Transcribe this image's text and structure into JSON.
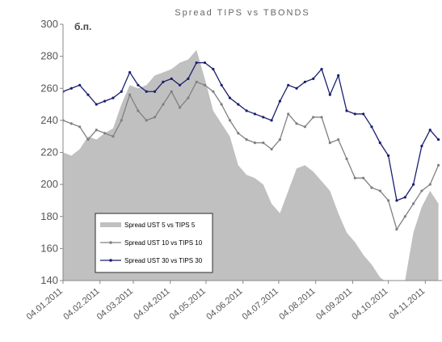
{
  "chart_data": {
    "type": "line",
    "title": "Spread TIPS vs TBONDS",
    "y_label": "б.п.",
    "x": [
      "04.01.2011",
      "11.01.2011",
      "18.01.2011",
      "25.01.2011",
      "01.02.2011",
      "08.02.2011",
      "15.02.2011",
      "22.02.2011",
      "01.03.2011",
      "08.03.2011",
      "15.03.2011",
      "22.03.2011",
      "29.03.2011",
      "05.04.2011",
      "12.04.2011",
      "19.04.2011",
      "26.04.2011",
      "03.05.2011",
      "10.05.2011",
      "17.05.2011",
      "24.05.2011",
      "31.05.2011",
      "07.06.2011",
      "14.06.2011",
      "21.06.2011",
      "28.06.2011",
      "05.07.2011",
      "12.07.2011",
      "19.07.2011",
      "26.07.2011",
      "02.08.2011",
      "09.08.2011",
      "16.08.2011",
      "23.08.2011",
      "30.08.2011",
      "06.09.2011",
      "13.09.2011",
      "20.09.2011",
      "27.09.2011",
      "04.10.2011",
      "11.10.2011",
      "18.10.2011",
      "25.10.2011",
      "01.11.2011",
      "08.11.2011",
      "15.11.2011"
    ],
    "series": [
      {
        "name": "Spread UST 5 vs TIPS 5",
        "kind": "area",
        "color": "#c0c0c0",
        "values": [
          220,
          218,
          222,
          230,
          228,
          232,
          235,
          250,
          262,
          260,
          262,
          268,
          270,
          272,
          276,
          278,
          284,
          266,
          246,
          238,
          230,
          212,
          206,
          204,
          200,
          188,
          182,
          196,
          210,
          212,
          208,
          202,
          196,
          182,
          170,
          164,
          156,
          150,
          142,
          138,
          140,
          140,
          170,
          186,
          196,
          188
        ]
      },
      {
        "name": "Spread UST 10 vs TIPS 10",
        "kind": "line",
        "color": "#808080",
        "values": [
          240,
          238,
          236,
          228,
          234,
          232,
          230,
          240,
          256,
          246,
          240,
          242,
          250,
          258,
          248,
          254,
          264,
          262,
          258,
          250,
          240,
          232,
          228,
          226,
          226,
          222,
          228,
          244,
          238,
          236,
          242,
          242,
          226,
          228,
          216,
          204,
          204,
          198,
          196,
          190,
          172,
          180,
          188,
          196,
          200,
          212
        ]
      },
      {
        "name": "Spread UST 30 vs TIPS 30",
        "kind": "line",
        "color": "#1a1f6e",
        "values": [
          258,
          260,
          262,
          256,
          250,
          252,
          254,
          258,
          270,
          262,
          258,
          258,
          264,
          266,
          262,
          266,
          276,
          276,
          272,
          262,
          254,
          250,
          246,
          244,
          242,
          240,
          252,
          262,
          260,
          264,
          266,
          272,
          256,
          268,
          246,
          244,
          244,
          236,
          226,
          218,
          190,
          192,
          200,
          224,
          234,
          228
        ]
      }
    ],
    "xlim": [
      "04.01.2011",
      "18.11.2011"
    ],
    "xticks": [
      "04.01.2011",
      "04.02.2011",
      "04.03.2011",
      "04.04.2011",
      "04.05.2011",
      "04.06.2011",
      "04.07.2011",
      "04.08.2011",
      "04.09.2011",
      "04.10.2011",
      "04.11.2011"
    ],
    "ylim": [
      140,
      300
    ],
    "yticks": [
      140,
      160,
      180,
      200,
      220,
      240,
      260,
      280,
      300
    ],
    "legend": "lower-left"
  }
}
